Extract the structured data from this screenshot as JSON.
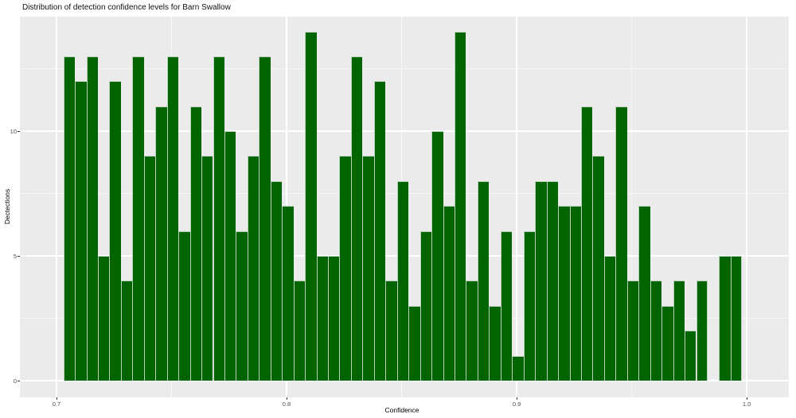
{
  "chart_data": {
    "type": "histogram",
    "title": "Distribution of detection confidence levels for Barn Swallow",
    "xlabel": "Confidence",
    "ylabel": "Dectections",
    "bin_width": 0.005,
    "first_bin_start": 0.703,
    "counts": [
      13,
      12,
      13,
      5,
      12,
      4,
      13,
      9,
      11,
      13,
      6,
      11,
      9,
      13,
      10,
      6,
      9,
      13,
      8,
      7,
      4,
      14,
      5,
      5,
      9,
      13,
      9,
      12,
      4,
      8,
      3,
      6,
      10,
      7,
      14,
      4,
      8,
      3,
      6,
      1,
      6,
      8,
      8,
      7,
      7,
      11,
      9,
      5,
      11,
      4,
      7,
      4,
      3,
      4,
      2,
      4,
      0,
      5,
      5
    ],
    "x_ticks": [
      0.7,
      0.8,
      0.9,
      1.0
    ],
    "x_tick_labels": [
      "0.7",
      "0.8",
      "0.9",
      "1.0"
    ],
    "y_ticks": [
      0,
      5,
      10
    ],
    "y_tick_labels": [
      "0",
      "5",
      "10"
    ],
    "x_minor": [
      0.75,
      0.85,
      0.95
    ],
    "y_minor": [
      2.5,
      7.5,
      12.5
    ],
    "xlim": [
      0.6841,
      1.0183
    ],
    "ylim": [
      -0.67,
      14.59
    ],
    "grid": "on",
    "legend": "none",
    "colors": {
      "bar_fill": "#006400",
      "bar_edge": "#b9d1b9",
      "panel_bg": "#ebebeb",
      "grid": "#ffffff",
      "tick_text": "#4d4d4d",
      "tick_mark": "#333333",
      "title_text": "#111111",
      "background": "#ffffff"
    }
  }
}
